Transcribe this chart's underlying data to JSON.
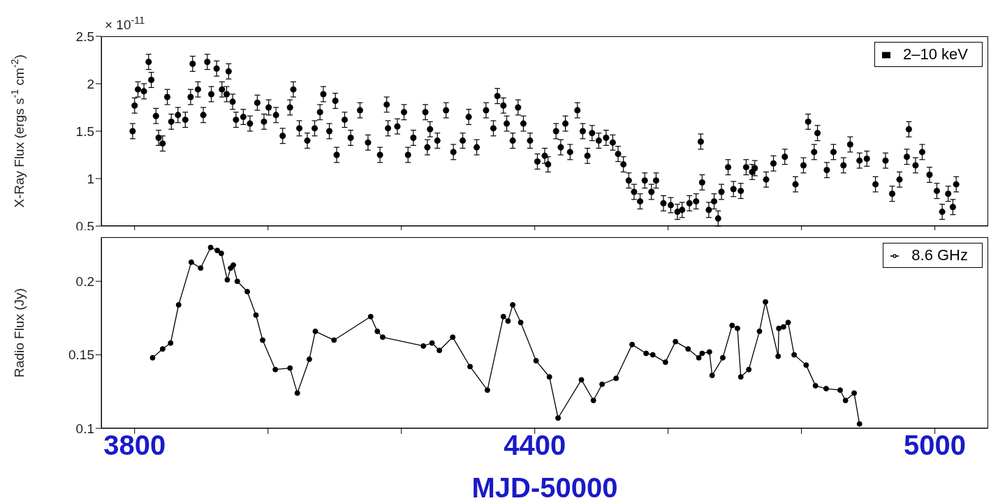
{
  "chart_data": [
    {
      "type": "scatter",
      "ylabel": "X-Ray Flux (ergs s$^{-1}$ cm$^{-2}$)",
      "annotations": [
        "× 10$^{-11}$"
      ],
      "xlim": [
        3750,
        5080
      ],
      "xticks": [
        3800,
        4000,
        4200,
        4400,
        4600,
        4800,
        5000
      ],
      "ylim": [
        0.5,
        2.5
      ],
      "yticks": [
        0.5,
        1,
        1.5,
        2,
        2.5
      ],
      "tick_labels": "y",
      "legend": "top right",
      "marker": "circle",
      "series": [
        {
          "name": "2–10 keV",
          "color": "#000000",
          "x": [
            3797,
            3800,
            3805,
            3814,
            3821,
            3825,
            3832,
            3836,
            3842,
            3849,
            3855,
            3865,
            3876,
            3884,
            3887,
            3895,
            3903,
            3909,
            3915,
            3923,
            3931,
            3938,
            3941,
            3947,
            3952,
            3963,
            3973,
            3984,
            3994,
            4001,
            4012,
            4022,
            4033,
            4038,
            4047,
            4059,
            4070,
            4078,
            4083,
            4092,
            4101,
            4103,
            4115,
            4124,
            4138,
            4150,
            4168,
            4178,
            4180,
            4194,
            4204,
            4210,
            4218,
            4236,
            4239,
            4243,
            4254,
            4267,
            4278,
            4292,
            4301,
            4313,
            4327,
            4338,
            4344,
            4353,
            4358,
            4367,
            4375,
            4383,
            4393,
            4404,
            4415,
            4420,
            4432,
            4439,
            4446,
            4453,
            4464,
            4472,
            4479,
            4486,
            4496,
            4507,
            4517,
            4525,
            4533,
            4541,
            4549,
            4558,
            4565,
            4575,
            4582,
            4593,
            4604,
            4614,
            4621,
            4632,
            4642,
            4649,
            4651,
            4661,
            4669,
            4675,
            4680,
            4690,
            4698,
            4709,
            4717,
            4726,
            4730,
            4747,
            4758,
            4775,
            4791,
            4803,
            4810,
            4819,
            4824,
            4838,
            4848,
            4863,
            4873,
            4887,
            4898,
            4911,
            4926,
            4936,
            4947,
            4958,
            4961,
            4971,
            4981,
            4992,
            5003,
            5011,
            5020,
            5027,
            5032
          ],
          "values": [
            1.5,
            1.77,
            1.94,
            1.92,
            2.23,
            2.04,
            1.66,
            1.43,
            1.37,
            1.86,
            1.6,
            1.67,
            1.62,
            1.86,
            2.21,
            1.94,
            1.67,
            2.23,
            1.89,
            2.16,
            1.94,
            1.89,
            2.13,
            1.81,
            1.62,
            1.65,
            1.58,
            1.8,
            1.6,
            1.75,
            1.67,
            1.45,
            1.75,
            1.94,
            1.53,
            1.4,
            1.53,
            1.7,
            1.89,
            1.5,
            1.82,
            1.25,
            1.62,
            1.43,
            1.72,
            1.38,
            1.25,
            1.78,
            1.53,
            1.55,
            1.7,
            1.25,
            1.43,
            1.7,
            1.33,
            1.52,
            1.4,
            1.72,
            1.28,
            1.4,
            1.65,
            1.33,
            1.72,
            1.53,
            1.87,
            1.77,
            1.58,
            1.4,
            1.75,
            1.58,
            1.4,
            1.18,
            1.24,
            1.15,
            1.5,
            1.33,
            1.58,
            1.28,
            1.72,
            1.5,
            1.24,
            1.48,
            1.4,
            1.43,
            1.38,
            1.26,
            1.15,
            0.98,
            0.86,
            0.76,
            0.98,
            0.86,
            0.98,
            0.74,
            0.72,
            0.65,
            0.67,
            0.74,
            0.76,
            1.39,
            0.96,
            0.67,
            0.76,
            0.58,
            0.86,
            1.12,
            0.89,
            0.87,
            1.12,
            1.07,
            1.11,
            0.99,
            1.16,
            1.23,
            0.94,
            1.14,
            1.6,
            1.28,
            1.48,
            1.09,
            1.28,
            1.14,
            1.36,
            1.19,
            1.21,
            0.94,
            1.19,
            0.84,
            0.99,
            1.23,
            1.52,
            1.14,
            1.28,
            1.04,
            0.87,
            0.65,
            0.84,
            0.7,
            0.94
          ],
          "errors": [
            0.08,
            0.08,
            0.08,
            0.08,
            0.08,
            0.08,
            0.08,
            0.08,
            0.08,
            0.08,
            0.08,
            0.08,
            0.08,
            0.08,
            0.08,
            0.08,
            0.08,
            0.08,
            0.08,
            0.08,
            0.08,
            0.08,
            0.08,
            0.08,
            0.08,
            0.08,
            0.08,
            0.08,
            0.08,
            0.08,
            0.08,
            0.08,
            0.08,
            0.08,
            0.08,
            0.08,
            0.08,
            0.08,
            0.08,
            0.08,
            0.08,
            0.08,
            0.08,
            0.08,
            0.08,
            0.08,
            0.08,
            0.08,
            0.08,
            0.08,
            0.08,
            0.08,
            0.08,
            0.08,
            0.08,
            0.08,
            0.08,
            0.08,
            0.08,
            0.08,
            0.08,
            0.08,
            0.08,
            0.08,
            0.08,
            0.08,
            0.08,
            0.08,
            0.08,
            0.08,
            0.08,
            0.08,
            0.08,
            0.08,
            0.08,
            0.08,
            0.08,
            0.08,
            0.08,
            0.08,
            0.08,
            0.08,
            0.08,
            0.08,
            0.08,
            0.08,
            0.08,
            0.08,
            0.08,
            0.08,
            0.08,
            0.08,
            0.08,
            0.08,
            0.08,
            0.08,
            0.08,
            0.08,
            0.08,
            0.08,
            0.08,
            0.08,
            0.08,
            0.08,
            0.08,
            0.08,
            0.08,
            0.08,
            0.08,
            0.08,
            0.08,
            0.08,
            0.08,
            0.08,
            0.08,
            0.08,
            0.08,
            0.08,
            0.08,
            0.08,
            0.08,
            0.08,
            0.08,
            0.08,
            0.08,
            0.08,
            0.08,
            0.08,
            0.08,
            0.08,
            0.08,
            0.08,
            0.08,
            0.08,
            0.08,
            0.08,
            0.08,
            0.08,
            0.08
          ]
        }
      ]
    },
    {
      "type": "line",
      "ylabel": "Radio Flux (Jy)",
      "xlabel": "MJD-50000",
      "xlim": [
        3750,
        5080
      ],
      "xticks": [
        {
          "value": 3800,
          "label": "3800"
        },
        {
          "value": 4000,
          "label": null
        },
        {
          "value": 4200,
          "label": null
        },
        {
          "value": 4400,
          "label": "4400"
        },
        {
          "value": 4600,
          "label": null
        },
        {
          "value": 4800,
          "label": null
        },
        {
          "value": 5000,
          "label": "5000"
        }
      ],
      "ylim": [
        0.1,
        0.23
      ],
      "yticks": [
        0.1,
        0.15,
        0.2
      ],
      "legend": "top right",
      "marker": "circle",
      "line_style": "solid",
      "series": [
        {
          "name": "8.6 GHz",
          "color": "#000000",
          "x": [
            3827,
            3842,
            3854,
            3866,
            3885,
            3899,
            3914,
            3924,
            3930,
            3939,
            3944,
            3948,
            3954,
            3969,
            3982,
            3992,
            4011,
            4033,
            4044,
            4062,
            4071,
            4099,
            4154,
            4164,
            4172,
            4233,
            4246,
            4257,
            4277,
            4303,
            4329,
            4353,
            4360,
            4367,
            4379,
            4402,
            4422,
            4435,
            4470,
            4488,
            4501,
            4522,
            4546,
            4567,
            4577,
            4596,
            4611,
            4630,
            4646,
            4651,
            4662,
            4666,
            4682,
            4696,
            4704,
            4709,
            4721,
            4737,
            4746,
            4765,
            4766,
            4773,
            4780,
            4789,
            4807,
            4821,
            4837,
            4858,
            4866,
            4879,
            4887
          ],
          "values": [
            0.148,
            0.154,
            0.158,
            0.184,
            0.213,
            0.209,
            0.223,
            0.221,
            0.219,
            0.201,
            0.209,
            0.211,
            0.2,
            0.193,
            0.177,
            0.16,
            0.14,
            0.141,
            0.124,
            0.147,
            0.166,
            0.16,
            0.176,
            0.166,
            0.162,
            0.156,
            0.158,
            0.153,
            0.162,
            0.142,
            0.126,
            0.176,
            0.173,
            0.184,
            0.172,
            0.146,
            0.135,
            0.107,
            0.133,
            0.119,
            0.13,
            0.134,
            0.157,
            0.151,
            0.15,
            0.145,
            0.159,
            0.154,
            0.148,
            0.151,
            0.152,
            0.136,
            0.148,
            0.17,
            0.168,
            0.135,
            0.14,
            0.166,
            0.186,
            0.149,
            0.168,
            0.169,
            0.172,
            0.15,
            0.143,
            0.129,
            0.127,
            0.126,
            0.119,
            0.124,
            0.103
          ]
        }
      ]
    }
  ]
}
